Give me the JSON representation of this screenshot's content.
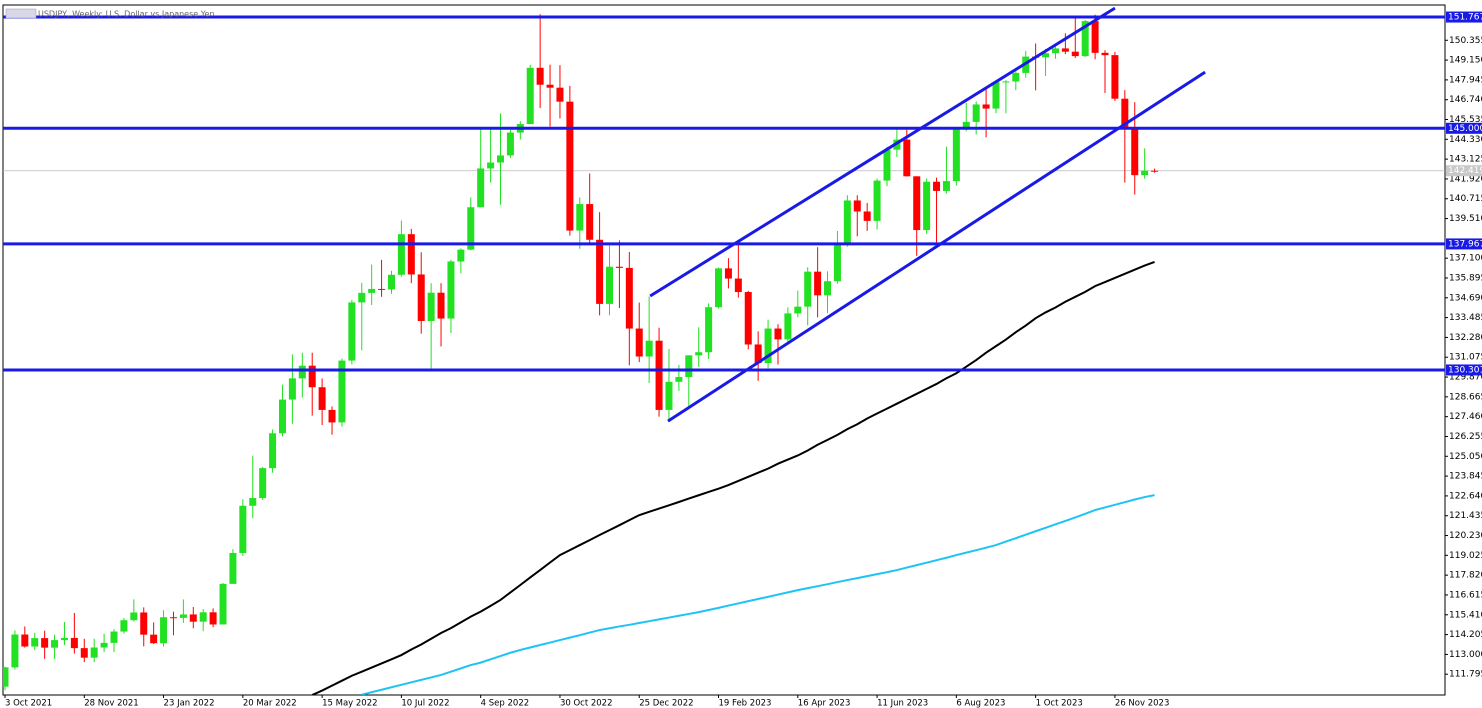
{
  "chart_data": {
    "type": "candlestick",
    "title": "USDJPY, Weekly: U.S. Dollar vs Japanese Yen",
    "categories": [
      "3 Oct 2021",
      null,
      null,
      null,
      null,
      null,
      null,
      null,
      "28 Nov 2021",
      null,
      null,
      null,
      null,
      null,
      null,
      null,
      "23 Jan 2022",
      null,
      null,
      null,
      null,
      null,
      null,
      null,
      "20 Mar 2022",
      null,
      null,
      null,
      null,
      null,
      null,
      null,
      "15 May 2022",
      null,
      null,
      null,
      null,
      null,
      null,
      null,
      "10 Jul 2022",
      null,
      null,
      null,
      null,
      null,
      null,
      null,
      "4 Sep 2022",
      null,
      null,
      null,
      null,
      null,
      null,
      null,
      "30 Oct 2022",
      null,
      null,
      null,
      null,
      null,
      null,
      null,
      "25 Dec 2022",
      null,
      null,
      null,
      null,
      null,
      null,
      null,
      "19 Feb 2023",
      null,
      null,
      null,
      null,
      null,
      null,
      null,
      "16 Apr 2023",
      null,
      null,
      null,
      null,
      null,
      null,
      null,
      "11 Jun 2023",
      null,
      null,
      null,
      null,
      null,
      null,
      null,
      "6 Aug 2023",
      null,
      null,
      null,
      null,
      null,
      null,
      null,
      "1 Oct 2023",
      null,
      null,
      null,
      null,
      null,
      null,
      null,
      "26 Nov 2023",
      null,
      null,
      null,
      null
    ],
    "open": [
      111.04,
      112.21,
      114.21,
      113.48,
      113.99,
      113.41,
      113.87,
      114.0,
      113.38,
      112.8,
      113.42,
      113.7,
      114.39,
      115.08,
      115.55,
      114.2,
      113.68,
      115.26,
      115.22,
      115.43,
      114.99,
      115.56,
      114.82,
      117.29,
      119.17,
      122.04,
      122.51,
      124.33,
      126.45,
      128.5,
      129.79,
      130.56,
      129.25,
      127.87,
      127.11,
      130.87,
      134.41,
      134.99,
      135.23,
      135.2,
      136.09,
      138.56,
      136.11,
      133.28,
      135.0,
      133.43,
      136.9,
      137.62,
      140.2,
      142.56,
      142.92,
      143.35,
      144.74,
      145.26,
      148.68,
      147.65,
      147.47,
      146.62,
      138.78,
      140.39,
      138.22,
      134.32,
      136.58,
      136.51,
      132.82,
      131.12,
      132.08,
      127.87,
      129.58,
      129.87,
      131.19,
      131.38,
      134.12,
      136.48,
      135.86,
      135.04,
      131.85,
      130.72,
      132.82,
      132.16,
      133.74,
      134.15,
      136.28,
      134.84,
      135.7,
      137.98,
      140.61,
      139.94,
      139.37,
      141.82,
      143.7,
      144.31,
      142.08,
      138.81,
      141.75,
      141.19,
      141.79,
      144.98,
      145.39,
      146.45,
      146.2,
      147.81,
      147.85,
      148.37,
      149.36,
      149.32,
      149.57,
      149.86,
      149.66,
      149.39,
      151.52,
      149.59,
      149.45,
      146.8,
      144.93,
      142.15,
      142.42
    ],
    "high": [
      112.25,
      114.46,
      114.7,
      114.31,
      114.44,
      114.2,
      114.97,
      115.52,
      113.95,
      113.95,
      114.26,
      114.53,
      115.21,
      116.35,
      115.86,
      114.95,
      115.69,
      115.6,
      116.34,
      115.88,
      115.76,
      115.8,
      117.34,
      119.4,
      122.44,
      125.09,
      124.4,
      126.68,
      129.41,
      131.25,
      131.35,
      131.35,
      129.78,
      128.08,
      131.0,
      134.56,
      135.6,
      136.71,
      137.0,
      136.33,
      139.39,
      138.88,
      137.46,
      135.58,
      135.58,
      137.0,
      137.7,
      140.8,
      144.99,
      144.96,
      145.9,
      144.9,
      145.43,
      148.86,
      151.94,
      148.87,
      148.84,
      147.58,
      140.79,
      142.25,
      139.9,
      137.86,
      138.18,
      137.48,
      134.4,
      134.77,
      132.87,
      131.58,
      130.61,
      131.2,
      132.9,
      134.35,
      136.53,
      137.1,
      137.91,
      135.11,
      132.65,
      133.36,
      133.08,
      134.11,
      135.13,
      136.55,
      137.77,
      136.3,
      138.75,
      140.93,
      140.93,
      140.46,
      141.95,
      143.87,
      145.07,
      144.91,
      142.08,
      141.95,
      142.0,
      143.88,
      145.07,
      146.56,
      146.64,
      147.37,
      147.87,
      147.93,
      148.46,
      149.71,
      150.16,
      149.83,
      150.09,
      150.78,
      151.72,
      151.59,
      151.91,
      149.75,
      149.65,
      147.32,
      146.59,
      143.78,
      142.55
    ],
    "low": [
      110.82,
      112.08,
      113.41,
      113.26,
      112.73,
      112.72,
      113.57,
      113.05,
      112.53,
      112.53,
      113.14,
      113.14,
      114.26,
      115.0,
      113.49,
      113.63,
      113.47,
      114.16,
      114.92,
      114.59,
      114.41,
      114.65,
      114.82,
      117.3,
      118.99,
      121.28,
      122.39,
      124.05,
      126.26,
      127.03,
      128.62,
      127.52,
      126.95,
      126.36,
      126.85,
      130.64,
      131.5,
      134.26,
      134.75,
      134.94,
      135.98,
      135.58,
      132.51,
      130.39,
      131.73,
      132.55,
      136.18,
      137.57,
      140.2,
      141.7,
      140.35,
      143.2,
      144.32,
      145.25,
      146.23,
      145.11,
      145.6,
      138.47,
      137.67,
      138.04,
      133.62,
      133.63,
      134.07,
      130.58,
      130.78,
      129.51,
      127.46,
      127.22,
      129.03,
      128.08,
      130.49,
      130.97,
      134.04,
      135.26,
      134.7,
      131.56,
      129.64,
      130.4,
      130.63,
      131.85,
      133.51,
      133.01,
      133.5,
      133.75,
      135.55,
      137.8,
      138.43,
      138.76,
      138.84,
      141.48,
      143.25,
      142.06,
      137.24,
      138.58,
      138.06,
      141.02,
      141.51,
      144.82,
      144.62,
      144.45,
      145.92,
      145.91,
      147.32,
      148.08,
      147.31,
      148.18,
      149.23,
      149.52,
      149.28,
      149.34,
      149.2,
      147.15,
      146.67,
      141.7,
      140.97,
      141.93,
      142.3
    ],
    "close": [
      112.21,
      114.21,
      113.48,
      113.99,
      113.41,
      113.87,
      114.0,
      113.38,
      112.8,
      113.42,
      113.7,
      114.39,
      115.08,
      115.55,
      114.2,
      113.68,
      115.26,
      115.22,
      115.43,
      114.99,
      115.56,
      114.82,
      117.29,
      119.17,
      122.04,
      122.51,
      124.33,
      126.45,
      128.5,
      129.79,
      130.56,
      129.25,
      127.87,
      127.11,
      130.87,
      134.41,
      134.99,
      135.23,
      135.2,
      136.09,
      138.56,
      136.11,
      133.28,
      135.0,
      133.43,
      136.9,
      137.62,
      140.2,
      142.56,
      142.92,
      143.35,
      144.74,
      145.26,
      148.68,
      147.65,
      147.47,
      146.62,
      138.78,
      140.39,
      138.22,
      134.32,
      136.58,
      136.51,
      132.82,
      131.12,
      132.08,
      127.87,
      129.58,
      129.87,
      131.19,
      131.38,
      134.12,
      136.48,
      135.86,
      135.04,
      131.85,
      130.72,
      132.82,
      132.16,
      133.74,
      134.15,
      136.28,
      134.84,
      135.7,
      137.98,
      140.61,
      139.94,
      139.37,
      141.82,
      143.7,
      144.31,
      142.08,
      138.81,
      141.75,
      141.19,
      141.79,
      144.98,
      145.39,
      146.45,
      146.2,
      147.81,
      147.85,
      148.37,
      149.36,
      149.32,
      149.57,
      149.86,
      149.66,
      149.39,
      151.52,
      149.59,
      149.45,
      146.8,
      144.93,
      142.15,
      142.42,
      142.419
    ],
    "up_color": "#22e022",
    "down_color": "#ff0000",
    "lines": [
      {
        "color": "#000000",
        "values": [
          null,
          null,
          null,
          null,
          null,
          null,
          null,
          null,
          null,
          null,
          null,
          null,
          null,
          null,
          null,
          null,
          null,
          null,
          null,
          null,
          null,
          null,
          null,
          null,
          null,
          null,
          null,
          null,
          null,
          null,
          null,
          110.53,
          110.8,
          111.1,
          111.4,
          111.7,
          111.95,
          112.2,
          112.45,
          112.7,
          112.96,
          113.3,
          113.6,
          113.95,
          114.3,
          114.6,
          114.95,
          115.3,
          115.6,
          115.95,
          116.31,
          116.77,
          117.22,
          117.68,
          118.13,
          118.59,
          119.04,
          119.34,
          119.65,
          119.95,
          120.26,
          120.56,
          120.86,
          121.17,
          121.47,
          121.67,
          121.87,
          122.07,
          122.27,
          122.48,
          122.68,
          122.88,
          123.08,
          123.3,
          123.55,
          123.8,
          124.05,
          124.3,
          124.6,
          124.85,
          125.1,
          125.4,
          125.75,
          126.05,
          126.35,
          126.7,
          127.0,
          127.35,
          127.65,
          127.95,
          128.25,
          128.55,
          128.85,
          129.15,
          129.45,
          129.8,
          130.1,
          130.5,
          130.9,
          131.35,
          131.75,
          132.15,
          132.6,
          133.0,
          133.45,
          133.8,
          134.1,
          134.45,
          134.75,
          135.05,
          135.4,
          135.65,
          135.9,
          136.15,
          136.4,
          136.65,
          136.87
        ]
      },
      {
        "color": "#1ec3f5",
        "values": [
          null,
          null,
          null,
          null,
          null,
          null,
          null,
          null,
          null,
          null,
          null,
          null,
          null,
          null,
          null,
          null,
          null,
          null,
          null,
          null,
          null,
          null,
          null,
          null,
          null,
          null,
          null,
          null,
          null,
          null,
          null,
          null,
          null,
          null,
          null,
          null,
          110.55,
          110.7,
          110.85,
          111.0,
          111.15,
          111.3,
          111.45,
          111.6,
          111.75,
          111.95,
          112.15,
          112.35,
          112.5,
          112.7,
          112.9,
          113.1,
          113.27,
          113.42,
          113.57,
          113.72,
          113.87,
          114.02,
          114.17,
          114.33,
          114.48,
          114.59,
          114.7,
          114.8,
          114.91,
          115.02,
          115.13,
          115.24,
          115.35,
          115.46,
          115.57,
          115.7,
          115.83,
          115.97,
          116.1,
          116.24,
          116.37,
          116.5,
          116.64,
          116.77,
          116.91,
          117.03,
          117.15,
          117.27,
          117.4,
          117.52,
          117.64,
          117.76,
          117.88,
          118.0,
          118.13,
          118.28,
          118.43,
          118.58,
          118.73,
          118.88,
          119.04,
          119.19,
          119.34,
          119.49,
          119.65,
          119.86,
          120.07,
          120.28,
          120.49,
          120.7,
          120.91,
          121.12,
          121.33,
          121.55,
          121.78,
          121.94,
          122.1,
          122.26,
          122.42,
          122.57,
          122.69
        ]
      }
    ],
    "levels": [
      151.767,
      {
        "value": 145,
        "label": "145.000"
      },
      137.967,
      130.301
    ],
    "level_color": "#1a1ae6",
    "trend_lines": [
      {
        "x": [
          65.1,
          112.0
        ],
        "y": [
          134.8,
          152.31
        ]
      },
      {
        "x": [
          66.9,
          121.1
        ],
        "y": [
          127.19,
          148.42
        ]
      }
    ],
    "current_price": 142.419,
    "ylim": [
      110.53,
      152.5
    ],
    "yticks": [
      150.355,
      {
        "value": 149.15,
        "label": "149.150"
      },
      147.945,
      {
        "value": 146.74,
        "label": "146.740"
      },
      145.535,
      {
        "value": 144.33,
        "label": "144.330"
      },
      143.125,
      {
        "value": 141.92,
        "label": "141.920"
      },
      140.715,
      {
        "value": 139.51,
        "label": "139.510"
      },
      {
        "value": 137.1,
        "label": "137.100"
      },
      135.895,
      {
        "value": 134.69,
        "label": "134.690"
      },
      133.485,
      {
        "value": 132.28,
        "label": "132.280"
      },
      131.075,
      {
        "value": 129.87,
        "label": "129.870"
      },
      128.665,
      {
        "value": 127.46,
        "label": "127.460"
      },
      126.255,
      {
        "value": 125.05,
        "label": "125.050"
      },
      123.845,
      {
        "value": 122.64,
        "label": "122.640"
      },
      121.435,
      {
        "value": 120.23,
        "label": "120.230"
      },
      119.025,
      {
        "value": 117.82,
        "label": "117.820"
      },
      116.615,
      {
        "value": 115.41,
        "label": "115.410"
      },
      114.205,
      {
        "value": 113,
        "label": "113.000"
      },
      111.795
    ]
  }
}
